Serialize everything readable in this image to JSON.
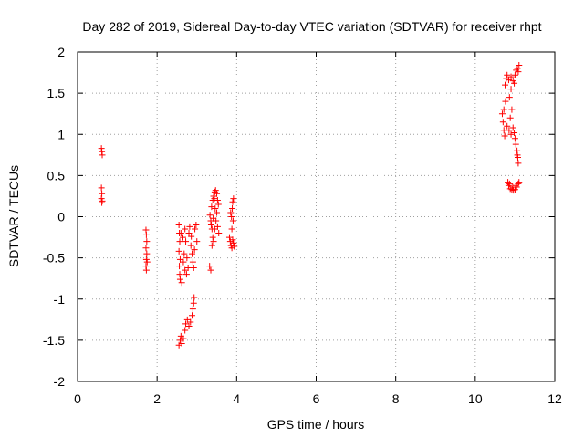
{
  "chart_data": {
    "type": "scatter",
    "title": "Day 282 of 2019, Sidereal Day-to-day VTEC variation (SDTVAR) for receiver rhpt",
    "xlabel": "GPS time / hours",
    "ylabel": "SDTVAR / TECUs",
    "xlim": [
      0,
      12
    ],
    "ylim": [
      -2,
      2
    ],
    "xticks": [
      0,
      2,
      4,
      6,
      8,
      10,
      12
    ],
    "yticks": [
      -2,
      -1.5,
      -1,
      -0.5,
      0,
      0.5,
      1,
      1.5,
      2
    ],
    "xtick_labels": [
      "0",
      "2",
      "4",
      "6",
      "8",
      "10",
      "12"
    ],
    "ytick_labels": [
      "-2",
      "-1.5",
      "-1",
      "-0.5",
      "0",
      "0.5",
      "1",
      "1.5",
      "2"
    ],
    "grid": true,
    "marker": "+",
    "color": "#ff0000",
    "series": [
      {
        "name": "SDTVAR",
        "points": [
          [
            0.6,
            0.83
          ],
          [
            0.61,
            0.79
          ],
          [
            0.62,
            0.75
          ],
          [
            0.6,
            0.35
          ],
          [
            0.61,
            0.28
          ],
          [
            0.6,
            0.22
          ],
          [
            0.62,
            0.19
          ],
          [
            0.61,
            0.17
          ],
          [
            1.72,
            -0.16
          ],
          [
            1.73,
            -0.22
          ],
          [
            1.74,
            -0.3
          ],
          [
            1.72,
            -0.38
          ],
          [
            1.74,
            -0.45
          ],
          [
            1.73,
            -0.52
          ],
          [
            1.75,
            -0.55
          ],
          [
            1.72,
            -0.6
          ],
          [
            1.73,
            -0.65
          ],
          [
            2.55,
            -1.56
          ],
          [
            2.58,
            -1.5
          ],
          [
            2.6,
            -1.45
          ],
          [
            2.62,
            -1.54
          ],
          [
            2.66,
            -1.48
          ],
          [
            2.7,
            -1.38
          ],
          [
            2.72,
            -1.3
          ],
          [
            2.76,
            -1.25
          ],
          [
            2.8,
            -1.33
          ],
          [
            2.84,
            -1.28
          ],
          [
            2.88,
            -1.2
          ],
          [
            2.9,
            -1.12
          ],
          [
            2.92,
            -1.05
          ],
          [
            2.93,
            -0.98
          ],
          [
            2.55,
            -0.1
          ],
          [
            2.56,
            -0.2
          ],
          [
            2.57,
            -0.3
          ],
          [
            2.55,
            -0.42
          ],
          [
            2.58,
            -0.52
          ],
          [
            2.56,
            -0.6
          ],
          [
            2.57,
            -0.7
          ],
          [
            2.58,
            -0.76
          ],
          [
            2.62,
            -0.8
          ],
          [
            2.6,
            -0.2
          ],
          [
            2.65,
            -0.25
          ],
          [
            2.7,
            -0.15
          ],
          [
            2.72,
            -0.3
          ],
          [
            2.68,
            -0.45
          ],
          [
            2.75,
            -0.5
          ],
          [
            2.78,
            -0.62
          ],
          [
            2.8,
            -0.2
          ],
          [
            2.82,
            -0.12
          ],
          [
            2.85,
            -0.35
          ],
          [
            2.88,
            -0.45
          ],
          [
            2.9,
            -0.55
          ],
          [
            2.92,
            -0.62
          ],
          [
            2.95,
            -0.15
          ],
          [
            2.98,
            -0.1
          ],
          [
            3.0,
            -0.3
          ],
          [
            2.66,
            -0.55
          ],
          [
            2.7,
            -0.65
          ],
          [
            2.74,
            -0.7
          ],
          [
            2.86,
            -0.24
          ],
          [
            2.94,
            -0.4
          ],
          [
            3.32,
            -0.6
          ],
          [
            3.35,
            -0.65
          ],
          [
            3.33,
            0.02
          ],
          [
            3.35,
            -0.05
          ],
          [
            3.36,
            -0.1
          ],
          [
            3.38,
            -0.15
          ],
          [
            3.4,
            -0.25
          ],
          [
            3.37,
            0.12
          ],
          [
            3.4,
            0.2
          ],
          [
            3.42,
            0.25
          ],
          [
            3.45,
            0.3
          ],
          [
            3.47,
            0.32
          ],
          [
            3.5,
            0.28
          ],
          [
            3.52,
            0.2
          ],
          [
            3.5,
            0.05
          ],
          [
            3.48,
            -0.05
          ],
          [
            3.52,
            -0.12
          ],
          [
            3.55,
            -0.2
          ],
          [
            3.45,
            -0.15
          ],
          [
            3.44,
            0.22
          ],
          [
            3.41,
            -0.02
          ],
          [
            3.46,
            0.1
          ],
          [
            3.54,
            0.15
          ],
          [
            3.38,
            -0.35
          ],
          [
            3.42,
            -0.3
          ],
          [
            3.82,
            -0.25
          ],
          [
            3.84,
            -0.3
          ],
          [
            3.86,
            -0.35
          ],
          [
            3.88,
            -0.38
          ],
          [
            3.85,
            0.05
          ],
          [
            3.87,
            0.0
          ],
          [
            3.89,
            0.1
          ],
          [
            3.9,
            0.18
          ],
          [
            3.92,
            0.22
          ],
          [
            3.88,
            -0.15
          ],
          [
            3.9,
            -0.28
          ],
          [
            3.92,
            -0.32
          ],
          [
            3.94,
            -0.36
          ],
          [
            3.91,
            -0.05
          ],
          [
            10.68,
            1.25
          ],
          [
            10.7,
            1.15
          ],
          [
            10.72,
            1.05
          ],
          [
            10.74,
            0.98
          ],
          [
            10.72,
            1.3
          ],
          [
            10.75,
            1.6
          ],
          [
            10.78,
            1.68
          ],
          [
            10.8,
            1.72
          ],
          [
            10.76,
            1.4
          ],
          [
            10.8,
            1.1
          ],
          [
            10.85,
            1.05
          ],
          [
            10.9,
            1.0
          ],
          [
            10.88,
            1.2
          ],
          [
            10.86,
            1.45
          ],
          [
            10.9,
            1.55
          ],
          [
            10.92,
            1.3
          ],
          [
            10.95,
            1.08
          ],
          [
            10.98,
            1.02
          ],
          [
            11.0,
            0.95
          ],
          [
            11.02,
            0.88
          ],
          [
            11.05,
            0.8
          ],
          [
            11.07,
            0.72
          ],
          [
            11.08,
            0.65
          ],
          [
            11.06,
            0.75
          ],
          [
            10.82,
            0.42
          ],
          [
            10.84,
            0.38
          ],
          [
            10.88,
            0.34
          ],
          [
            10.92,
            0.33
          ],
          [
            10.96,
            0.32
          ],
          [
            11.0,
            0.33
          ],
          [
            11.04,
            0.36
          ],
          [
            11.08,
            0.4
          ],
          [
            11.1,
            0.42
          ],
          [
            10.86,
            0.4
          ],
          [
            10.94,
            0.36
          ],
          [
            11.02,
            0.38
          ],
          [
            10.95,
            1.65
          ],
          [
            11.0,
            1.72
          ],
          [
            11.03,
            1.78
          ],
          [
            11.06,
            1.8
          ],
          [
            11.1,
            1.84
          ],
          [
            11.08,
            1.76
          ],
          [
            10.98,
            1.62
          ],
          [
            10.9,
            1.7
          ],
          [
            10.84,
            1.66
          ]
        ]
      }
    ]
  }
}
